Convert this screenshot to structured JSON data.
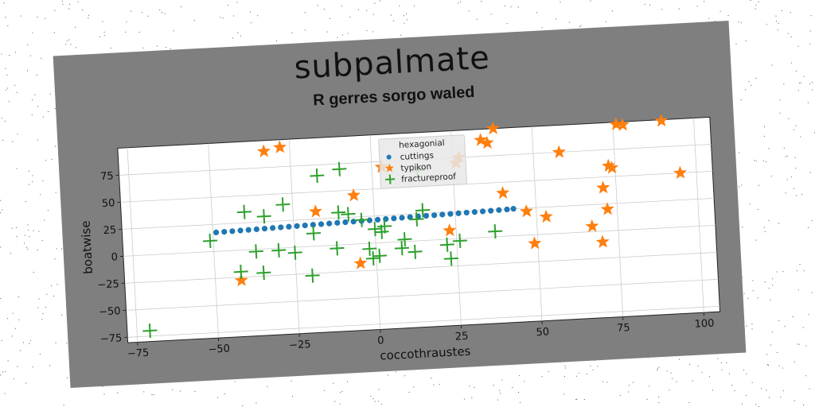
{
  "chart_data": {
    "type": "scatter",
    "suptitle": "subpalmate",
    "title": "R gerres sorgo waled",
    "xlabel": "coccothraustes",
    "ylabel": "boatwise",
    "xlim": [
      -78,
      105
    ],
    "ylim": [
      -80,
      100
    ],
    "xticks": [
      -75,
      -50,
      -25,
      0,
      25,
      50,
      75,
      100
    ],
    "yticks": [
      -75,
      -50,
      -25,
      0,
      25,
      50,
      75
    ],
    "xtick_labels": [
      "−75",
      "−50",
      "−25",
      "0",
      "25",
      "50",
      "75",
      "100"
    ],
    "ytick_labels": [
      "−75",
      "−50",
      "−25",
      "0",
      "25",
      "50",
      "75"
    ],
    "grid": true,
    "legend": {
      "title": "hexagonial",
      "placement": "top-center",
      "entries": [
        "cuttings",
        "typikon",
        "fractureproof"
      ]
    },
    "series": [
      {
        "name": "cuttings",
        "marker": "circle",
        "color": "#1f77b4",
        "x": [
          -49,
          -46.5,
          -44,
          -41.5,
          -39,
          -36.5,
          -34,
          -31.5,
          -29,
          -26.5,
          -24,
          -21.5,
          -19,
          -16.5,
          -14,
          -11.5,
          -9,
          -6.5,
          -4,
          -1.5,
          1,
          3.5,
          6,
          8.5,
          11,
          13.5,
          16,
          18.5,
          21,
          23.5,
          26,
          28.5,
          31,
          33.5,
          36,
          38.5,
          41,
          43
        ],
        "y": [
          17.5,
          17.7,
          17.9,
          18.1,
          18.3,
          18.5,
          18.7,
          18.9,
          19.1,
          19.3,
          19.5,
          19.7,
          19.9,
          20.1,
          20.3,
          20.5,
          20.7,
          20.9,
          21.1,
          21.3,
          21.5,
          21.7,
          21.9,
          22.1,
          22.3,
          22.5,
          22.7,
          22.9,
          23.1,
          23.3,
          23.5,
          23.7,
          23.9,
          24.1,
          24.3,
          24.5,
          24.7,
          25
        ]
      },
      {
        "name": "typikon",
        "marker": "star",
        "color": "#ff7f0e",
        "x": [
          -42,
          -33,
          -28,
          -18,
          -5,
          -6,
          3,
          23,
          26,
          27,
          34,
          36,
          38,
          40,
          47,
          49,
          53,
          58,
          67,
          70,
          71,
          72,
          73,
          74,
          76,
          78,
          90,
          95
        ],
        "y": [
          -28,
          90,
          93,
          32,
          -18,
          45,
          70,
          8,
          70,
          75,
          90,
          87,
          100,
          40,
          22,
          -8,
          16,
          75,
          5,
          -10,
          40,
          20,
          60,
          58,
          98,
          97,
          99,
          50
        ]
      },
      {
        "name": "fractureproof",
        "marker": "plus",
        "color": "#2ca02c",
        "x": [
          -71,
          -51,
          -42,
          -40,
          -37,
          -35,
          -34,
          -30,
          -28,
          -25,
          -20,
          -19,
          -17,
          -12,
          -11,
          -10,
          -8,
          -4,
          -2,
          -1,
          0,
          1,
          2,
          3,
          8,
          9,
          12,
          13,
          14,
          15,
          22,
          23,
          26,
          37
        ],
        "y": [
          -70,
          10,
          -20,
          35,
          -2,
          -22,
          30,
          -2,
          40,
          -5,
          -27,
          12,
          65,
          -3,
          30,
          70,
          28,
          22,
          -5,
          -14,
          13,
          -12,
          10,
          15,
          -6,
          2,
          -10,
          20,
          65,
          28,
          -5,
          -18,
          -2,
          5
        ]
      }
    ]
  }
}
